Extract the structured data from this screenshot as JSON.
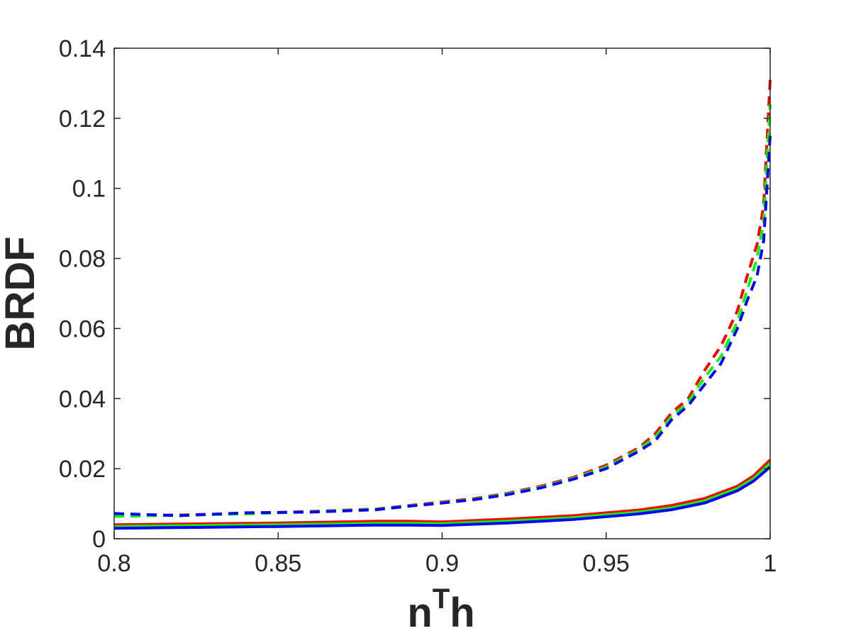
{
  "chart_data": {
    "type": "line",
    "xlabel": "n",
    "xlabel_sup": "T",
    "xlabel_tail": "h",
    "ylabel": "BRDF",
    "xlim": [
      0.8,
      1.0
    ],
    "ylim": [
      0,
      0.14
    ],
    "xticks": [
      0.8,
      0.85,
      0.9,
      0.95,
      1.0
    ],
    "xtick_labels": [
      "0.8",
      "0.85",
      "0.9",
      "0.95",
      "1"
    ],
    "yticks": [
      0,
      0.02,
      0.04,
      0.06,
      0.08,
      0.1,
      0.12,
      0.14
    ],
    "ytick_labels": [
      "0",
      "0.02",
      "0.04",
      "0.06",
      "0.08",
      "0.1",
      "0.12",
      "0.14"
    ],
    "grid": false,
    "box": true,
    "series": [
      {
        "color": "#ff0000",
        "style": "dashed",
        "x": [
          0.8,
          0.82,
          0.84,
          0.86,
          0.88,
          0.89,
          0.9,
          0.91,
          0.92,
          0.93,
          0.94,
          0.95,
          0.96,
          0.965,
          0.97,
          0.975,
          0.98,
          0.985,
          0.99,
          0.993,
          0.996,
          0.998,
          1.0
        ],
        "y": [
          0.0065,
          0.0068,
          0.0072,
          0.0078,
          0.0085,
          0.0095,
          0.0105,
          0.0115,
          0.013,
          0.015,
          0.0175,
          0.021,
          0.026,
          0.03,
          0.036,
          0.04,
          0.048,
          0.055,
          0.065,
          0.075,
          0.084,
          0.095,
          0.131
        ]
      },
      {
        "color": "#00ff00",
        "style": "dashed",
        "x": [
          0.8,
          0.82,
          0.84,
          0.86,
          0.88,
          0.89,
          0.9,
          0.91,
          0.92,
          0.93,
          0.94,
          0.95,
          0.96,
          0.965,
          0.97,
          0.975,
          0.98,
          0.985,
          0.99,
          0.993,
          0.996,
          0.998,
          1.0
        ],
        "y": [
          0.0064,
          0.0067,
          0.0071,
          0.0077,
          0.0084,
          0.0094,
          0.0103,
          0.0113,
          0.0128,
          0.0147,
          0.0172,
          0.0205,
          0.0255,
          0.029,
          0.035,
          0.039,
          0.046,
          0.052,
          0.062,
          0.071,
          0.08,
          0.09,
          0.124
        ]
      },
      {
        "color": "#0000ff",
        "style": "dashed",
        "x": [
          0.8,
          0.82,
          0.84,
          0.86,
          0.88,
          0.89,
          0.9,
          0.91,
          0.92,
          0.93,
          0.94,
          0.95,
          0.96,
          0.965,
          0.97,
          0.975,
          0.98,
          0.985,
          0.99,
          0.993,
          0.996,
          0.998,
          1.0
        ],
        "y": [
          0.0072,
          0.0066,
          0.0074,
          0.0076,
          0.0083,
          0.0093,
          0.0102,
          0.0112,
          0.0126,
          0.0145,
          0.017,
          0.02,
          0.025,
          0.028,
          0.034,
          0.038,
          0.044,
          0.05,
          0.06,
          0.068,
          0.075,
          0.085,
          0.115
        ]
      },
      {
        "color": "#ff0000",
        "style": "solid",
        "x": [
          0.8,
          0.85,
          0.88,
          0.89,
          0.9,
          0.92,
          0.94,
          0.96,
          0.97,
          0.98,
          0.99,
          0.995,
          1.0
        ],
        "y": [
          0.004,
          0.0045,
          0.005,
          0.005,
          0.0048,
          0.0056,
          0.0066,
          0.0082,
          0.0095,
          0.0115,
          0.015,
          0.018,
          0.0225
        ]
      },
      {
        "color": "#00ff00",
        "style": "solid",
        "x": [
          0.8,
          0.85,
          0.88,
          0.89,
          0.9,
          0.92,
          0.94,
          0.96,
          0.97,
          0.98,
          0.99,
          0.995,
          1.0
        ],
        "y": [
          0.0035,
          0.004,
          0.0044,
          0.0044,
          0.0043,
          0.005,
          0.006,
          0.0076,
          0.0088,
          0.0108,
          0.0143,
          0.0172,
          0.0215
        ]
      },
      {
        "color": "#0000ff",
        "style": "solid",
        "x": [
          0.8,
          0.85,
          0.88,
          0.89,
          0.9,
          0.92,
          0.94,
          0.96,
          0.97,
          0.98,
          0.99,
          0.995,
          1.0
        ],
        "y": [
          0.003,
          0.0035,
          0.0039,
          0.0039,
          0.0038,
          0.0045,
          0.0055,
          0.0071,
          0.0083,
          0.0102,
          0.0137,
          0.0165,
          0.0205
        ]
      }
    ]
  }
}
